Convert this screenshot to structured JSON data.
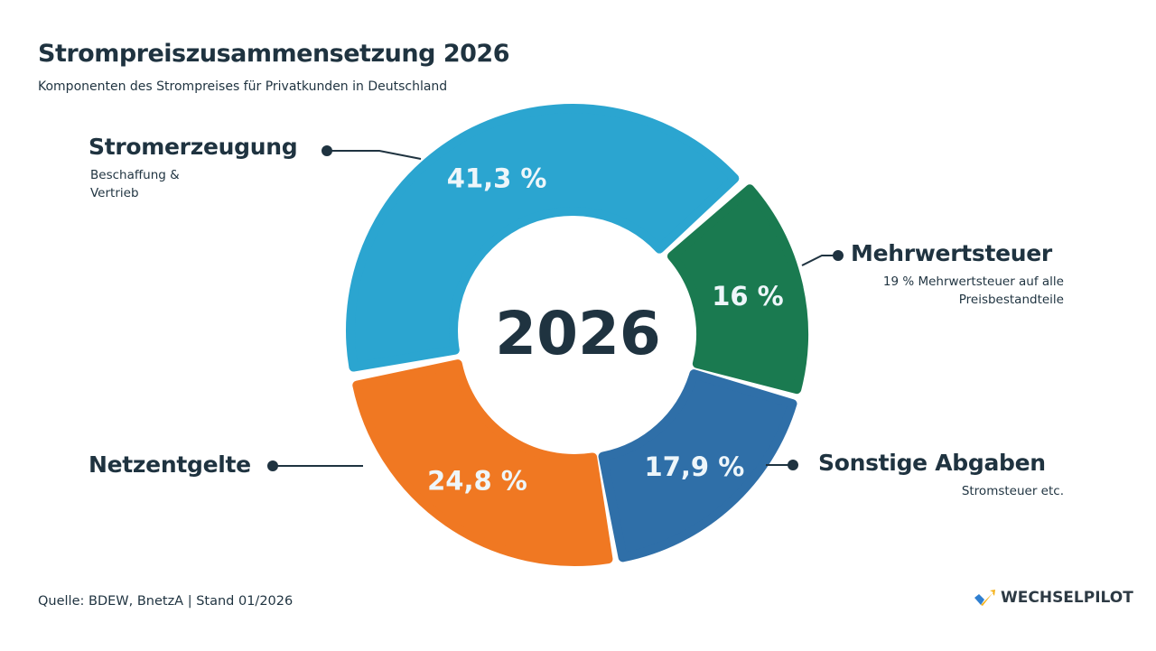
{
  "title": "Strompreiszusammensetzung 2026",
  "subtitle": "Komponenten des Strompreises für Privatkunden in Deutschland",
  "source": "Quelle: BDEW, BnetzA | Stand 01/2026",
  "logo": "WECHSELPILOT",
  "chart_data": {
    "type": "pie",
    "variant": "donut",
    "center_label": "2026",
    "unit": "%",
    "segments": [
      {
        "name": "Stromerzeugung",
        "description": "Beschaffung & Vertrieb",
        "value": 41.3,
        "label": "41,3 %",
        "color": "#2ba5d0"
      },
      {
        "name": "Mehrwertsteuer",
        "description": "19 % Mehrwertsteuer auf alle Preisbestandteile",
        "value": 16,
        "label": "16 %",
        "color": "#1a7a50"
      },
      {
        "name": "Sonstige Abgaben",
        "description": "Stromsteuer etc.",
        "value": 17.9,
        "label": "17,9 %",
        "color": "#2f6fa8"
      },
      {
        "name": "Netzentgelte",
        "description": "",
        "value": 24.8,
        "label": "24,8 %",
        "color": "#f07822"
      }
    ]
  }
}
